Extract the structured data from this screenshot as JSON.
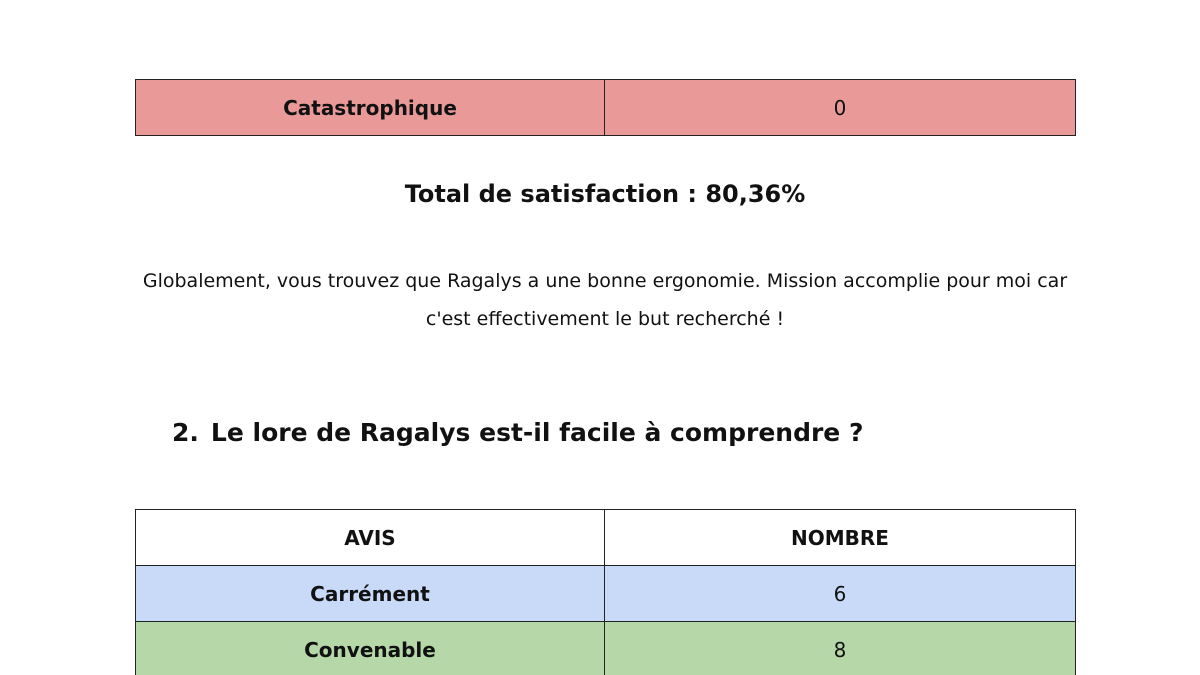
{
  "previous_table": {
    "rows": [
      {
        "avis": "Catastrophique",
        "nombre": "0",
        "color": "#ea9999"
      }
    ]
  },
  "total": "Total de satisfaction : 80,36%",
  "summary": "Globalement, vous trouvez que Ragalys a une bonne ergonomie. Mission accomplie pour moi car c'est effectivement le but recherché !",
  "question": {
    "number": "2.",
    "text": "Le lore de Ragalys est-il facile à comprendre ?"
  },
  "table": {
    "headers": [
      "AVIS",
      "NOMBRE"
    ],
    "rows": [
      {
        "avis": "Carrément",
        "nombre": "6",
        "color": "#c9daf8"
      },
      {
        "avis": "Convenable",
        "nombre": "8",
        "color": "#b6d7a8"
      }
    ]
  }
}
